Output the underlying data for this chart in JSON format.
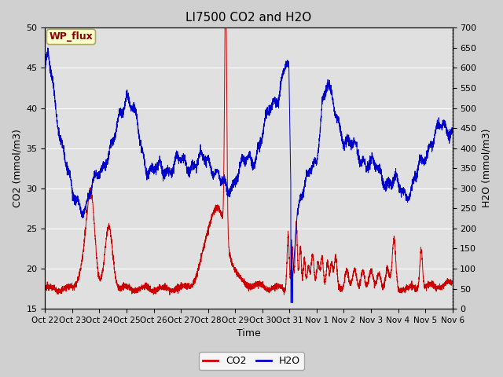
{
  "title": "LI7500 CO2 and H2O",
  "xlabel": "Time",
  "ylabel_left": "CO2 (mmol/m3)",
  "ylabel_right": "H2O (mmol/m3)",
  "co2_color": "#CC0000",
  "h2o_color": "#0000CC",
  "ylim_left": [
    15,
    50
  ],
  "ylim_right": [
    0,
    700
  ],
  "fig_bg": "#D0D0D0",
  "plot_bg": "#E0E0E0",
  "grid_color": "#FFFFFF",
  "xtick_labels": [
    "Oct 22",
    "Oct 23",
    "Oct 24",
    "Oct 25",
    "Oct 26",
    "Oct 27",
    "Oct 28",
    "Oct 29",
    "Oct 30",
    "Oct 31",
    "Nov 1",
    "Nov 2",
    "Nov 3",
    "Nov 4",
    "Nov 5",
    "Nov 6"
  ],
  "yticks_left": [
    15,
    20,
    25,
    30,
    35,
    40,
    45,
    50
  ],
  "yticks_right": [
    0,
    50,
    100,
    150,
    200,
    250,
    300,
    350,
    400,
    450,
    500,
    550,
    600,
    650,
    700
  ],
  "annotation_text": "WP_flux",
  "annotation_color": "#8B0000",
  "annotation_bg": "#FFFFCC",
  "annotation_border": "#AAAA66",
  "title_fontsize": 11,
  "axis_fontsize": 9,
  "tick_fontsize": 8,
  "xtick_fontsize": 7.5
}
